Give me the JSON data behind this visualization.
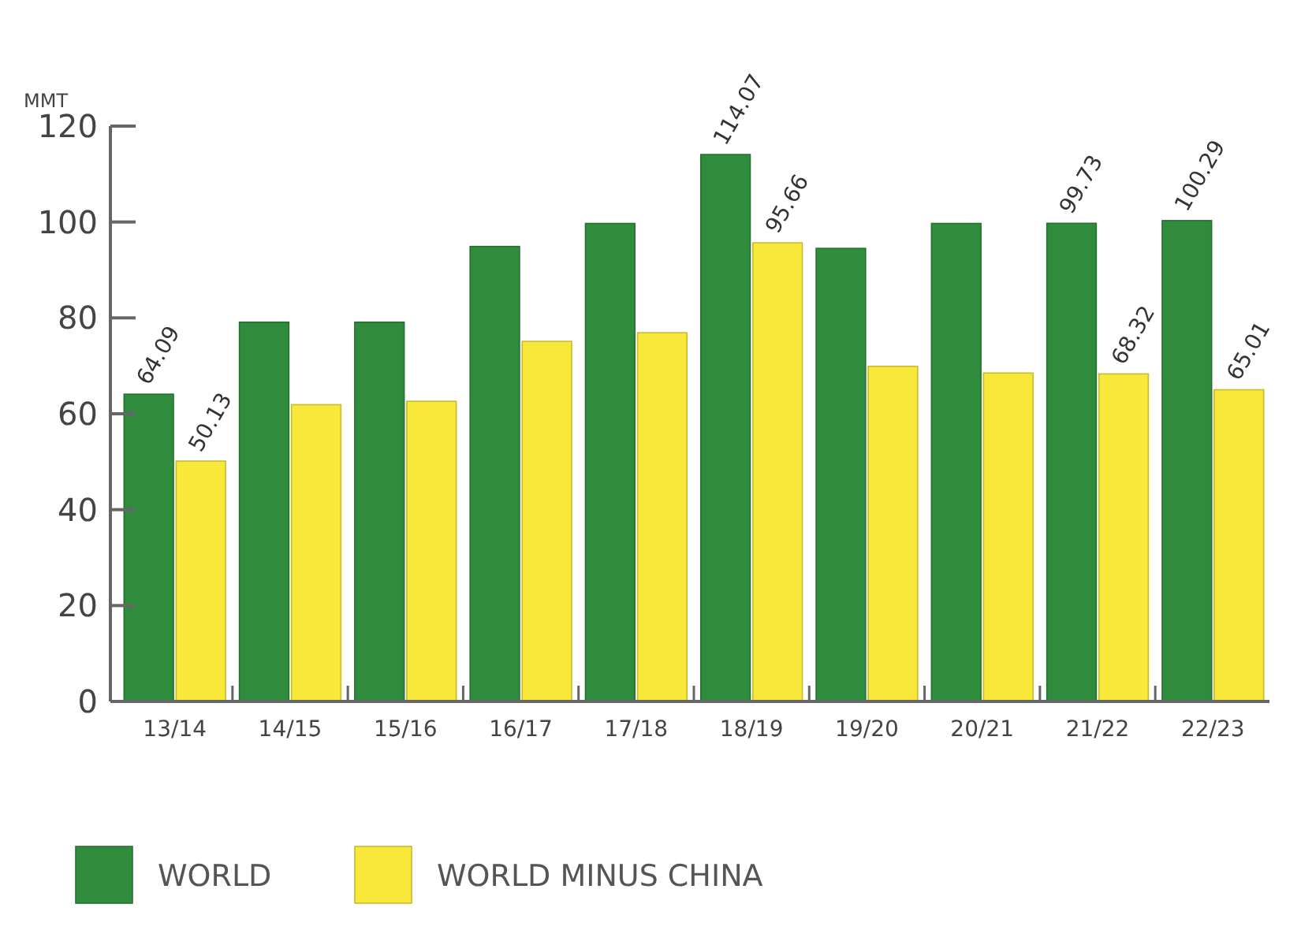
{
  "chart_data": {
    "type": "bar",
    "ylabel": "MMT",
    "categories": [
      "13/14",
      "14/15",
      "15/16",
      "16/17",
      "17/18",
      "18/19",
      "19/20",
      "20/21",
      "21/22",
      "22/23"
    ],
    "series": [
      {
        "name": "WORLD",
        "color": "#2f8c3c",
        "values": [
          64.09,
          79.1,
          79.1,
          94.9,
          99.7,
          114.07,
          94.5,
          99.7,
          99.73,
          100.29
        ],
        "value_labels": [
          "64.09",
          null,
          null,
          null,
          null,
          "114.07",
          null,
          null,
          "99.73",
          "100.29"
        ]
      },
      {
        "name": "WORLD MINUS CHINA",
        "color": "#f7e83a",
        "values": [
          50.13,
          61.9,
          62.6,
          75.1,
          76.9,
          95.66,
          69.9,
          68.5,
          68.32,
          65.01
        ],
        "value_labels": [
          "50.13",
          null,
          null,
          null,
          null,
          "95.66",
          null,
          null,
          "68.32",
          "65.01"
        ]
      }
    ],
    "ylim": [
      0,
      120
    ],
    "yticks": [
      0,
      20,
      40,
      60,
      80,
      100,
      120
    ],
    "grid": false,
    "legend": "bottom"
  }
}
